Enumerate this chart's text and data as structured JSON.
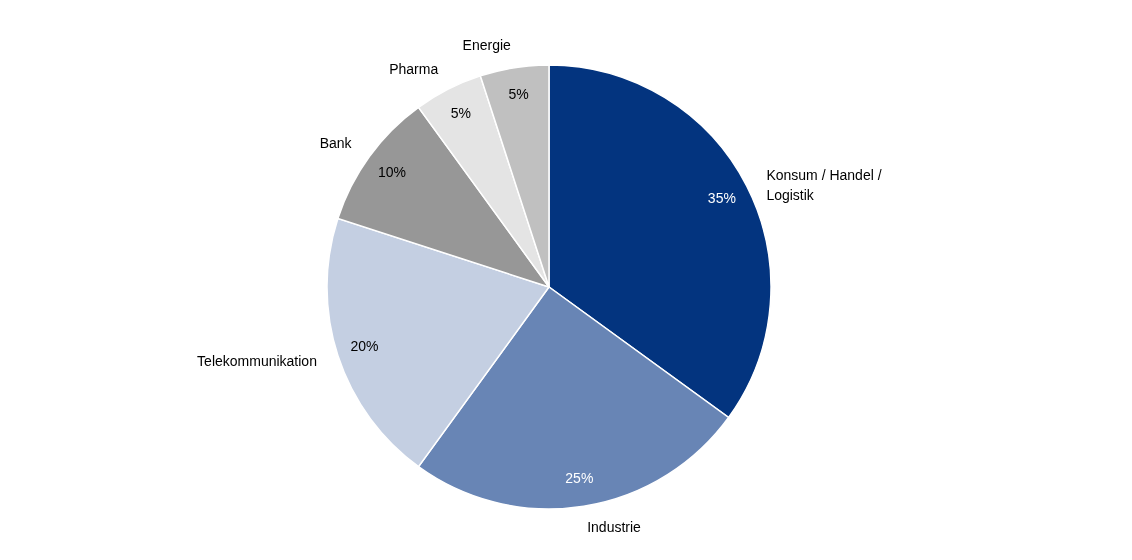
{
  "chart_data": {
    "type": "pie",
    "categories": [
      "Konsum / Handel / Logistik",
      "Industrie",
      "Telekommunikation",
      "Bank",
      "Pharma",
      "Energie"
    ],
    "values": [
      35,
      25,
      20,
      10,
      5,
      5
    ],
    "value_labels": [
      "35%",
      "25%",
      "20%",
      "10%",
      "5%",
      "5%"
    ],
    "colors": [
      "#03347f",
      "#6885b5",
      "#c4cfe2",
      "#979797",
      "#e4e4e4",
      "#c0c0c0"
    ]
  }
}
